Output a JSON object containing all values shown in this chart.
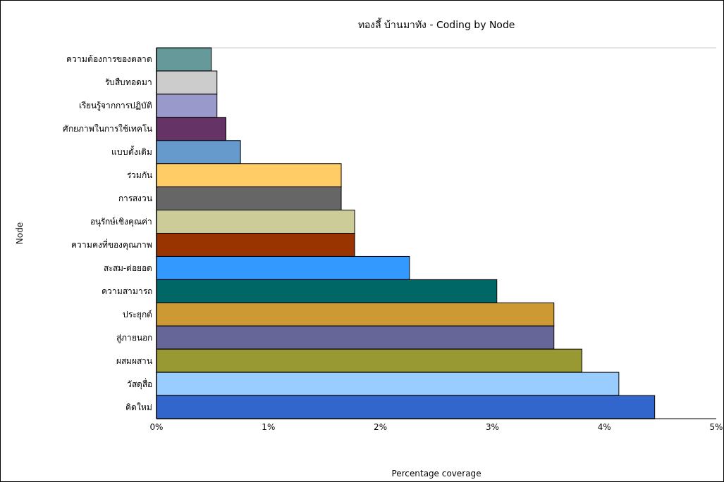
{
  "chart_data": {
    "type": "bar",
    "orientation": "horizontal",
    "title": "ทองลี้ บ้านมาทัง - Coding by Node",
    "xlabel": "Percentage coverage",
    "ylabel": "Node",
    "categories": [
      "ความต้องการของตลาด",
      "รับสืบทอดมา",
      "เรียนรู้จากการปฏิบัติ",
      "ศักยภาพในการใช้เทคโน",
      "แบบดั้งเดิม",
      "ร่วมกัน",
      "การสงวน",
      "อนุรักษ์เชิงคุณค่า",
      "ความคงที่ของคุณภาพ",
      "สะสม-ต่อยอด",
      "ความสามารถ",
      "ประยุกต์",
      "สู่ภายนอก",
      "ผสมผสาน",
      "วัสดุสื่อ",
      "คิดใหม่"
    ],
    "values": [
      0.49,
      0.54,
      0.54,
      0.62,
      0.75,
      1.65,
      1.65,
      1.77,
      1.77,
      2.26,
      3.04,
      3.55,
      3.55,
      3.8,
      4.13,
      4.45
    ],
    "colors": [
      "#669999",
      "#cccccc",
      "#9999cc",
      "#663366",
      "#6699cc",
      "#ffcc66",
      "#666666",
      "#cccc99",
      "#993300",
      "#3399ff",
      "#006666",
      "#cc9933",
      "#666699",
      "#999933",
      "#99ccff",
      "#3366cc"
    ],
    "xlim": [
      0,
      5
    ],
    "xticks": [
      {
        "value": 0,
        "label": "0%"
      },
      {
        "value": 1,
        "label": "1%"
      },
      {
        "value": 2,
        "label": "2%"
      },
      {
        "value": 3,
        "label": "3%"
      },
      {
        "value": 4,
        "label": "4%"
      },
      {
        "value": 5,
        "label": "5%"
      }
    ],
    "grid": false
  }
}
